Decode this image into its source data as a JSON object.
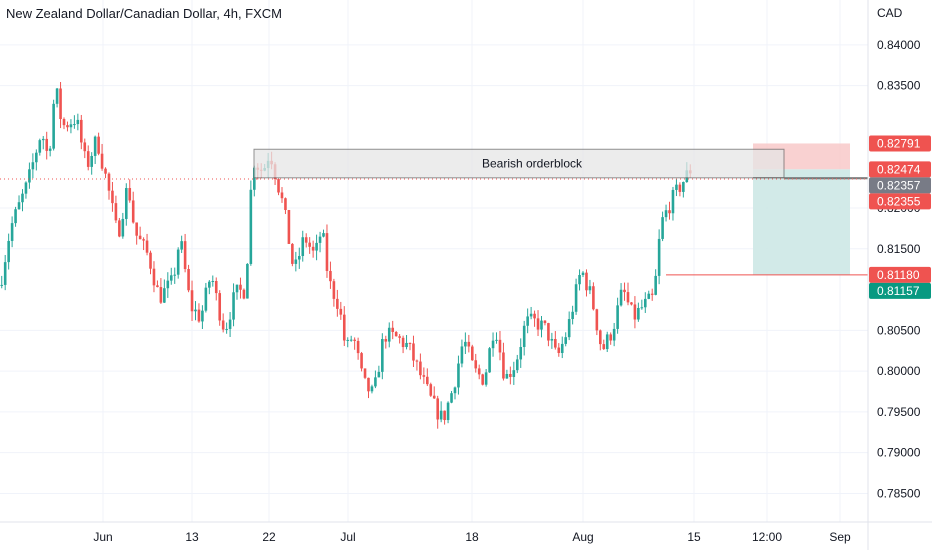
{
  "title": "New Zealand Dollar/Canadian Dollar, 4h, FXCM",
  "colors": {
    "up": "#26a69a",
    "down": "#ef5350",
    "grid": "#f0f3fa",
    "axis_text": "#131722",
    "stop_zone": "#f7c5c5",
    "target_zone": "#cde8e6",
    "orderblock_fill": "#e6e6e6",
    "orderblock_border": "#6b6b6b",
    "dotted_line": "#ef5350"
  },
  "chart_data": {
    "type": "candlestick",
    "symbol": "NZDCAD",
    "timeframe": "4h",
    "currency": "CAD",
    "ylim": [
      0.7815,
      0.8455
    ],
    "y_ticks": [
      "0.84000",
      "0.83500",
      "0.82000",
      "0.81500",
      "0.80500",
      "0.80000",
      "0.79500",
      "0.79000",
      "0.78500"
    ],
    "x_ticks": [
      "Jun",
      "13",
      "22",
      "Jul",
      "18",
      "Aug",
      "15",
      "12:00",
      "Sep"
    ],
    "last_price": 0.82355,
    "annotations": {
      "orderblock": {
        "label": "Bearish orderblock",
        "top": 0.8272,
        "bottom": 0.8237
      },
      "short_position": {
        "stop": 0.82791,
        "entry": 0.82474,
        "target": 0.8118
      },
      "price_labels": [
        {
          "text": "0.82791",
          "value": 0.82791,
          "color": "#ef5350"
        },
        {
          "text": "0.82474",
          "value": 0.82474,
          "color": "#ef5350"
        },
        {
          "text": "0.82357",
          "value": 0.82357,
          "color": "#787b86"
        },
        {
          "text": "0.82355",
          "value": 0.82355,
          "color": "#ef5350"
        },
        {
          "text": "0.81180",
          "value": 0.8118,
          "color": "#ef5350"
        },
        {
          "text": "0.81157",
          "value": 0.81157,
          "color": "#089981"
        }
      ]
    },
    "path": [
      0.8105,
      0.8175,
      0.823,
      0.8295,
      0.826,
      0.835,
      0.83,
      0.831,
      0.825,
      0.8285,
      0.823,
      0.8165,
      0.823,
      0.817,
      0.814,
      0.809,
      0.811,
      0.8165,
      0.808,
      0.8065,
      0.812,
      0.808,
      0.805,
      0.8095,
      0.81,
      0.826,
      0.8245,
      0.827,
      0.82,
      0.812,
      0.8165,
      0.814,
      0.8175,
      0.811,
      0.808,
      0.8025,
      0.8045,
      0.7985,
      0.797,
      0.8045,
      0.804,
      0.803,
      0.799,
      0.796,
      0.794,
      0.798,
      0.804,
      0.8,
      0.799,
      0.806,
      0.799,
      0.801,
      0.806,
      0.806,
      0.805,
      0.8015,
      0.805,
      0.8125,
      0.809,
      0.8025,
      0.805,
      0.81,
      0.8065,
      0.808,
      0.809,
      0.818,
      0.8205,
      0.823,
      0.825
    ],
    "path_x_ratio": [
      0.0,
      0.015,
      0.04,
      0.06,
      0.07,
      0.08,
      0.09,
      0.11,
      0.125,
      0.14,
      0.155,
      0.17,
      0.185,
      0.195,
      0.215,
      0.23,
      0.25,
      0.26,
      0.275,
      0.29,
      0.305,
      0.315,
      0.325,
      0.34,
      0.355,
      0.365,
      0.38,
      0.39,
      0.41,
      0.425,
      0.44,
      0.455,
      0.465,
      0.475,
      0.49,
      0.5,
      0.51,
      0.525,
      0.54,
      0.555,
      0.575,
      0.59,
      0.61,
      0.625,
      0.64,
      0.655,
      0.67,
      0.685,
      0.7,
      0.715,
      0.73,
      0.745,
      0.76,
      0.775,
      0.79,
      0.805,
      0.82,
      0.84,
      0.855,
      0.87,
      0.885,
      0.9,
      0.915,
      0.93,
      0.945,
      0.955,
      0.968,
      0.985,
      1.0
    ]
  }
}
